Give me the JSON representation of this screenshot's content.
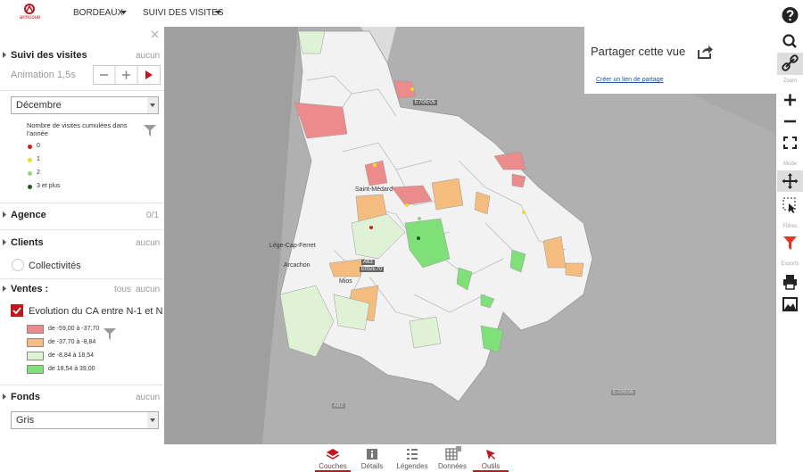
{
  "header": {
    "logo": "armcoue",
    "menu": [
      "BORDEAUX",
      "SUIVI DES VISITES"
    ]
  },
  "sidebar": {
    "visits": {
      "title": "Suivi des visites",
      "none": "aucun",
      "animation": "Animation 1,5s",
      "month": "Décembre",
      "legend_title": "Nombre de visites cumulées dans l'année",
      "legend": [
        "0",
        "1",
        "2",
        "3 et plus"
      ]
    },
    "agency": {
      "title": "Agence",
      "count": "0/1"
    },
    "clients": {
      "title": "Clients",
      "none": "aucun",
      "item": "Collectivités"
    },
    "sales": {
      "title": "Ventes :",
      "all": "tous",
      "none": "aucun",
      "layer": "Evolution du CA entre N-1 et N",
      "legend": [
        "de -59,00 à -37,70",
        "de -37,70 à -8,84",
        "de -8,84 à 18,54",
        "de 18,54 à 39,00"
      ]
    },
    "background": {
      "title": "Fonds",
      "none": "aucun",
      "value": "Gris"
    }
  },
  "map": {
    "labels": [
      "Saint-Médard",
      "Lège-Cap-Ferret",
      "Arcachon",
      "Mios"
    ],
    "shields": [
      "A63",
      "E05/E70",
      "E70/E05",
      "A63",
      "E70/E05"
    ]
  },
  "share": {
    "title": "Partager cette vue",
    "link": "Créer un lien de partage"
  },
  "toolbar": {
    "sections": [
      "Zoom",
      "Mode",
      "Filtres",
      "Exports"
    ]
  },
  "tabs": [
    "Couches",
    "Détails",
    "Légendes",
    "Données",
    "Outils"
  ]
}
